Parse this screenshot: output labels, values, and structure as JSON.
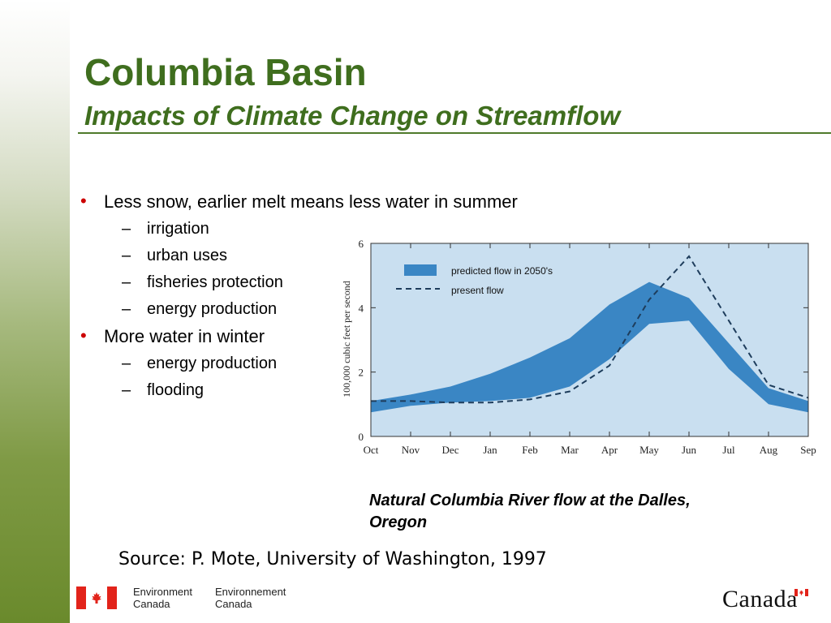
{
  "slide": {
    "title": "Columbia Basin",
    "subtitle": "Impacts of Climate Change on Streamflow",
    "bullets": [
      {
        "text": "Less snow, earlier melt means less water in summer",
        "subs": [
          "irrigation",
          "urban uses",
          "fisheries protection",
          "energy production"
        ]
      },
      {
        "text": "More water in winter",
        "subs": [
          "energy production",
          "flooding"
        ]
      }
    ],
    "caption": "Natural Columbia River flow at the Dalles, Oregon",
    "source": "Source:  P. Mote, University of Washington, 1997",
    "footer": {
      "dept_en_1": "Environment",
      "dept_en_2": "Canada",
      "dept_fr_1": "Environnement",
      "dept_fr_2": "Canada",
      "wordmark": "Canada"
    },
    "colors": {
      "title": "#3f6e1e",
      "bullet": "#cc0000",
      "rule": "#4f7a2b"
    }
  },
  "chart_data": {
    "type": "area",
    "categories": [
      "Oct",
      "Nov",
      "Dec",
      "Jan",
      "Feb",
      "Mar",
      "Apr",
      "May",
      "Jun",
      "Jul",
      "Aug",
      "Sep"
    ],
    "ylabel": "100,000 cubic feet per second",
    "ylim": [
      0,
      6
    ],
    "yticks": [
      0,
      2,
      4,
      6
    ],
    "legend_position": "top-left",
    "series": [
      {
        "name": "predicted flow in 2050's",
        "style": "band",
        "color": "#3a86c4",
        "upper": [
          1.1,
          1.3,
          1.55,
          1.95,
          2.45,
          3.05,
          4.1,
          4.8,
          4.3,
          2.9,
          1.5,
          1.1
        ],
        "lower": [
          0.75,
          0.95,
          1.05,
          1.1,
          1.2,
          1.55,
          2.4,
          3.5,
          3.6,
          2.1,
          1.0,
          0.75
        ]
      },
      {
        "name": "present flow",
        "style": "dashed",
        "color": "#1e3d5c",
        "values": [
          1.1,
          1.1,
          1.05,
          1.05,
          1.15,
          1.4,
          2.2,
          4.25,
          5.6,
          3.6,
          1.6,
          1.2
        ]
      }
    ]
  }
}
